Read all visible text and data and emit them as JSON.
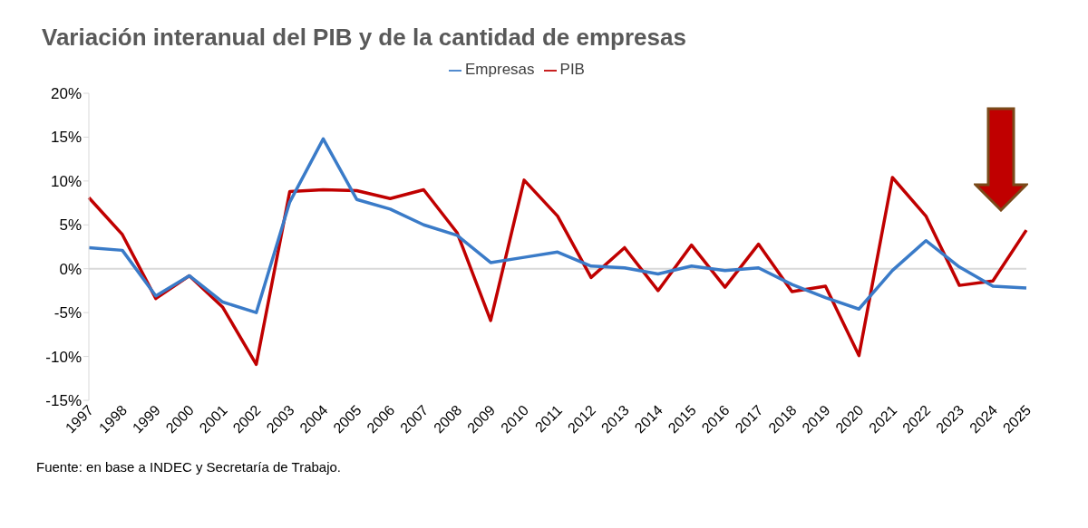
{
  "chart_data": {
    "type": "line",
    "title": "Variación interanual del PIB y de la cantidad de empresas",
    "categories": [
      "1997",
      "1998",
      "1999",
      "2000",
      "2001",
      "2002",
      "2003",
      "2004",
      "2005",
      "2006",
      "2007",
      "2008",
      "2009",
      "2010",
      "2011",
      "2012",
      "2013",
      "2014",
      "2015",
      "2016",
      "2017",
      "2018",
      "2019",
      "2020",
      "2021",
      "2022",
      "2023",
      "2024",
      "2025"
    ],
    "series": [
      {
        "name": "PIB",
        "color": "#c00000",
        "values": [
          8.1,
          3.9,
          -3.4,
          -0.8,
          -4.4,
          -10.9,
          8.8,
          9.0,
          8.9,
          8.0,
          9.0,
          4.1,
          -5.9,
          10.1,
          6.0,
          -1.0,
          2.4,
          -2.5,
          2.7,
          -2.1,
          2.8,
          -2.6,
          -2.0,
          -9.9,
          10.4,
          6.0,
          -1.9,
          -1.4,
          4.4
        ]
      },
      {
        "name": "Empresas",
        "color": "#3a7bc8",
        "values": [
          2.4,
          2.1,
          -3.1,
          -0.8,
          -3.8,
          -5.0,
          7.6,
          14.8,
          7.9,
          6.8,
          5.0,
          3.8,
          0.7,
          1.3,
          1.9,
          0.3,
          0.1,
          -0.6,
          0.3,
          -0.2,
          0.1,
          -1.8,
          -3.3,
          -4.6,
          -0.2,
          3.2,
          0.2,
          -2.0,
          -2.2
        ]
      }
    ],
    "ylim": [
      -15,
      20
    ],
    "yticks": [
      {
        "value": -15,
        "label": "-15%"
      },
      {
        "value": -10,
        "label": "-10%"
      },
      {
        "value": -5,
        "label": "-5%"
      },
      {
        "value": 0,
        "label": "0%"
      },
      {
        "value": 5,
        "label": "5%"
      },
      {
        "value": 10,
        "label": "10%"
      },
      {
        "value": 15,
        "label": "15%"
      },
      {
        "value": 20,
        "label": "20%"
      }
    ],
    "ref_lines": [
      {
        "axis": "y",
        "value": 0,
        "color": "#d9d9d9"
      }
    ],
    "grid": false,
    "legend": "top",
    "marker": "none",
    "line_style": "solid",
    "annotations": [
      "Fuente: en base a INDEC y Secretaría de Trabajo."
    ]
  }
}
